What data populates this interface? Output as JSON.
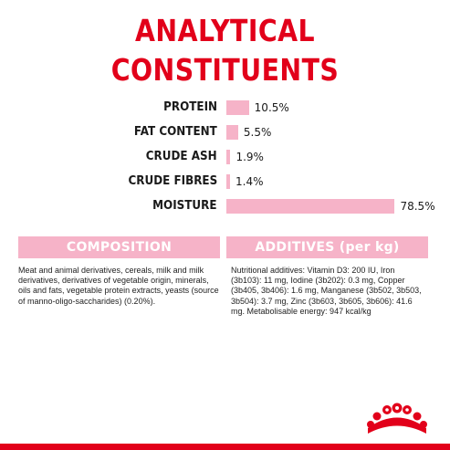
{
  "title": {
    "line1": "ANALYTICAL",
    "line2": "CONSTITUENTS"
  },
  "constituents": [
    {
      "label": "PROTEIN",
      "value_text": "10.5%",
      "percent": 10.5
    },
    {
      "label": "FAT CONTENT",
      "value_text": "5.5%",
      "percent": 5.5
    },
    {
      "label": "CRUDE ASH",
      "value_text": "1.9%",
      "percent": 1.9
    },
    {
      "label": "CRUDE FIBRES",
      "value_text": "1.4%",
      "percent": 1.4
    },
    {
      "label": "MOISTURE",
      "value_text": "78.5%",
      "percent": 78.5
    }
  ],
  "composition": {
    "header": "COMPOSITION",
    "text": "Meat and animal derivatives, cereals, milk and milk derivatives, derivatives of vegetable origin, minerals, oils and fats, vegetable protein extracts, yeasts (source of manno-oligo-saccharides) (0.20%)."
  },
  "additives": {
    "header": "ADDITIVES (per kg)",
    "text": "Nutritional additives: Vitamin D3: 200 IU, Iron (3b103): 11 mg, Iodine (3b202): 0.3 mg, Copper (3b405, 3b406): 1.6 mg, Manganese (3b502, 3b503, 3b504): 3.7 mg, Zinc (3b603, 3b605, 3b606): 41.6 mg. Metabolisable energy: 947 kcal/kg"
  },
  "colors": {
    "brand_red": "#e2001a",
    "bar_pink": "#f6b3c8",
    "text": "#1a1a1a"
  },
  "logo": {
    "icon": "royal-canin-crown-icon"
  }
}
